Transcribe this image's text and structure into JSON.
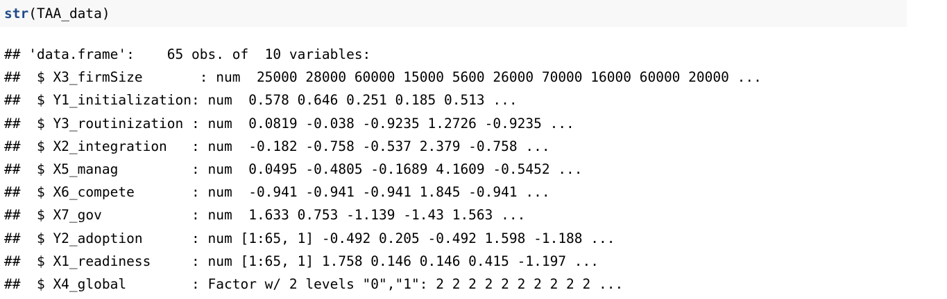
{
  "code": {
    "function_name": "str",
    "open_paren": "(",
    "argument": "TAA_data",
    "close_paren": ")"
  },
  "output_lines": [
    "## 'data.frame':    65 obs. of  10 variables:",
    "##  $ X3_firmSize       : num  25000 28000 60000 15000 5600 26000 70000 16000 60000 20000 ...",
    "##  $ Y1_initialization: num  0.578 0.646 0.251 0.185 0.513 ...",
    "##  $ Y3_routinization : num  0.0819 -0.038 -0.9235 1.2726 -0.9235 ...",
    "##  $ X2_integration   : num  -0.182 -0.758 -0.537 2.379 -0.758 ...",
    "##  $ X5_manag         : num  0.0495 -0.4805 -0.1689 4.1609 -0.5452 ...",
    "##  $ X6_compete       : num  -0.941 -0.941 -0.941 1.845 -0.941 ...",
    "##  $ X7_gov           : num  1.633 0.753 -1.139 -1.43 1.563 ...",
    "##  $ Y2_adoption      : num [1:65, 1] -0.492 0.205 -0.492 1.598 -1.188 ...",
    "##  $ X1_readiness     : num [1:65, 1] 1.758 0.146 0.146 0.415 -1.197 ...",
    "##  $ X4_global        : Factor w/ 2 levels \"0\",\"1\": 2 2 2 2 2 2 2 2 2 2 ..."
  ],
  "colors": {
    "code_background": "#f8f8f8",
    "function_color": "#204a87",
    "text_color": "#000000"
  }
}
